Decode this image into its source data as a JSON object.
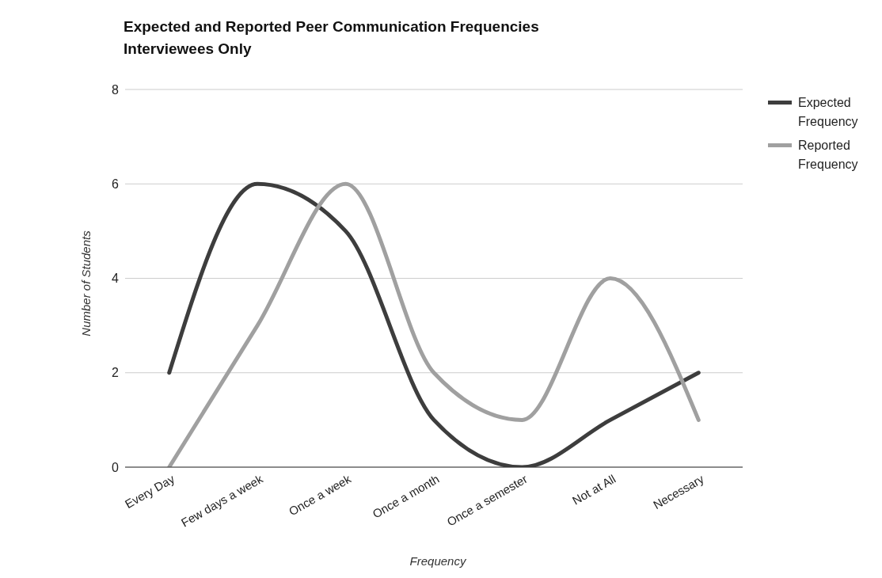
{
  "chart_data": {
    "type": "line",
    "title": "Expected and Reported Peer Communication Frequencies",
    "subtitle": "Interviewees Only",
    "xlabel": "Frequency",
    "ylabel": "Number of Students",
    "categories": [
      "Every Day",
      "Few days a week",
      "Once a week",
      "Once a month",
      "Once a semester",
      "Not at All",
      "Necessary"
    ],
    "series": [
      {
        "name": "Expected Frequency",
        "color": "#3d3d3d",
        "values": [
          2,
          6,
          5,
          1,
          0,
          1,
          2
        ]
      },
      {
        "name": "Reported Frequency",
        "color": "#a0a0a0",
        "values": [
          0,
          3,
          6,
          2,
          1,
          4,
          1
        ]
      }
    ],
    "ylim": [
      0,
      8
    ],
    "yticks": [
      0,
      2,
      4,
      6,
      8
    ],
    "grid": "y",
    "legend": "top right",
    "marker": "none",
    "line_style": "solid"
  }
}
